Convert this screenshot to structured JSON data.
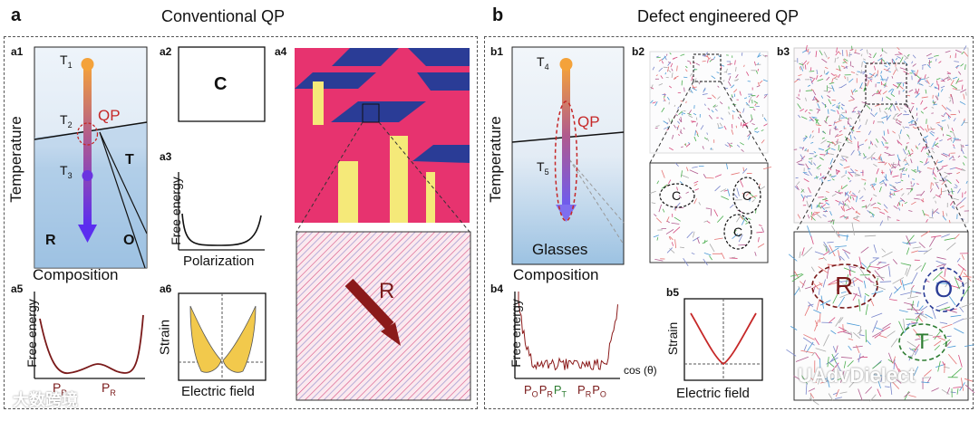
{
  "panel_a": {
    "letter": "a",
    "title": "Conventional QP",
    "labels": {
      "a1": "a1",
      "a2": "a2",
      "a3": "a3",
      "a4": "a4",
      "a5": "a5",
      "a6": "a6"
    },
    "a1": {
      "t1": "T",
      "t1_sub": "1",
      "t2": "T",
      "t2_sub": "2",
      "t3": "T",
      "t3_sub": "3",
      "qp": "QP",
      "phase_t": "T",
      "phase_r": "R",
      "phase_o": "O",
      "ylabel": "Temperature",
      "xlabel": "Composition"
    },
    "a2": {
      "phase": "C"
    },
    "a3": {
      "ylabel": "Free energy",
      "xlabel": "Polarization"
    },
    "a4": {
      "phase": "R"
    },
    "a5": {
      "ylabel": "Free energy",
      "pr_left": "P",
      "pr_left_sub": "R",
      "pr_right": "P",
      "pr_right_sub": "R"
    },
    "a6": {
      "ylabel": "Strain",
      "xlabel": "Electric field"
    }
  },
  "panel_b": {
    "letter": "b",
    "title": "Defect engineered QP",
    "labels": {
      "b1": "b1",
      "b2": "b2",
      "b3": "b3",
      "b4": "b4",
      "b5": "b5"
    },
    "b1": {
      "t4": "T",
      "t4_sub": "4",
      "t5": "T",
      "t5_sub": "5",
      "qp": "QP",
      "glasses": "Glasses",
      "ylabel": "Temperature",
      "xlabel": "Composition"
    },
    "b2": {
      "c1": "C",
      "c2": "C",
      "c3": "C"
    },
    "b3": {
      "r": "R",
      "o": "O",
      "t": "T"
    },
    "b4": {
      "ylabel": "Free energy",
      "xlabel": "cos (θ)",
      "ticks": [
        {
          "p": "P",
          "s": "O",
          "c": "#7a1a1a"
        },
        {
          "p": "P",
          "s": "R",
          "c": "#7a1a1a"
        },
        {
          "p": "P",
          "s": "T",
          "c": "#2e7d32"
        },
        {
          "p": "P",
          "s": "R",
          "c": "#7a1a1a"
        },
        {
          "p": "P",
          "s": "O",
          "c": "#7a1a1a"
        }
      ]
    },
    "b5": {
      "ylabel": "Strain",
      "xlabel": "Electric field"
    }
  },
  "watermark": {
    "left": "大数跨境",
    "right": "UAdvDielect"
  },
  "colors": {
    "accent_red": "#c62828",
    "dark_red": "#7a1a1a",
    "navy": "#2a3c96",
    "magenta": "#e8336e",
    "yellow": "#f5e979",
    "gold": "#f2c94c"
  }
}
